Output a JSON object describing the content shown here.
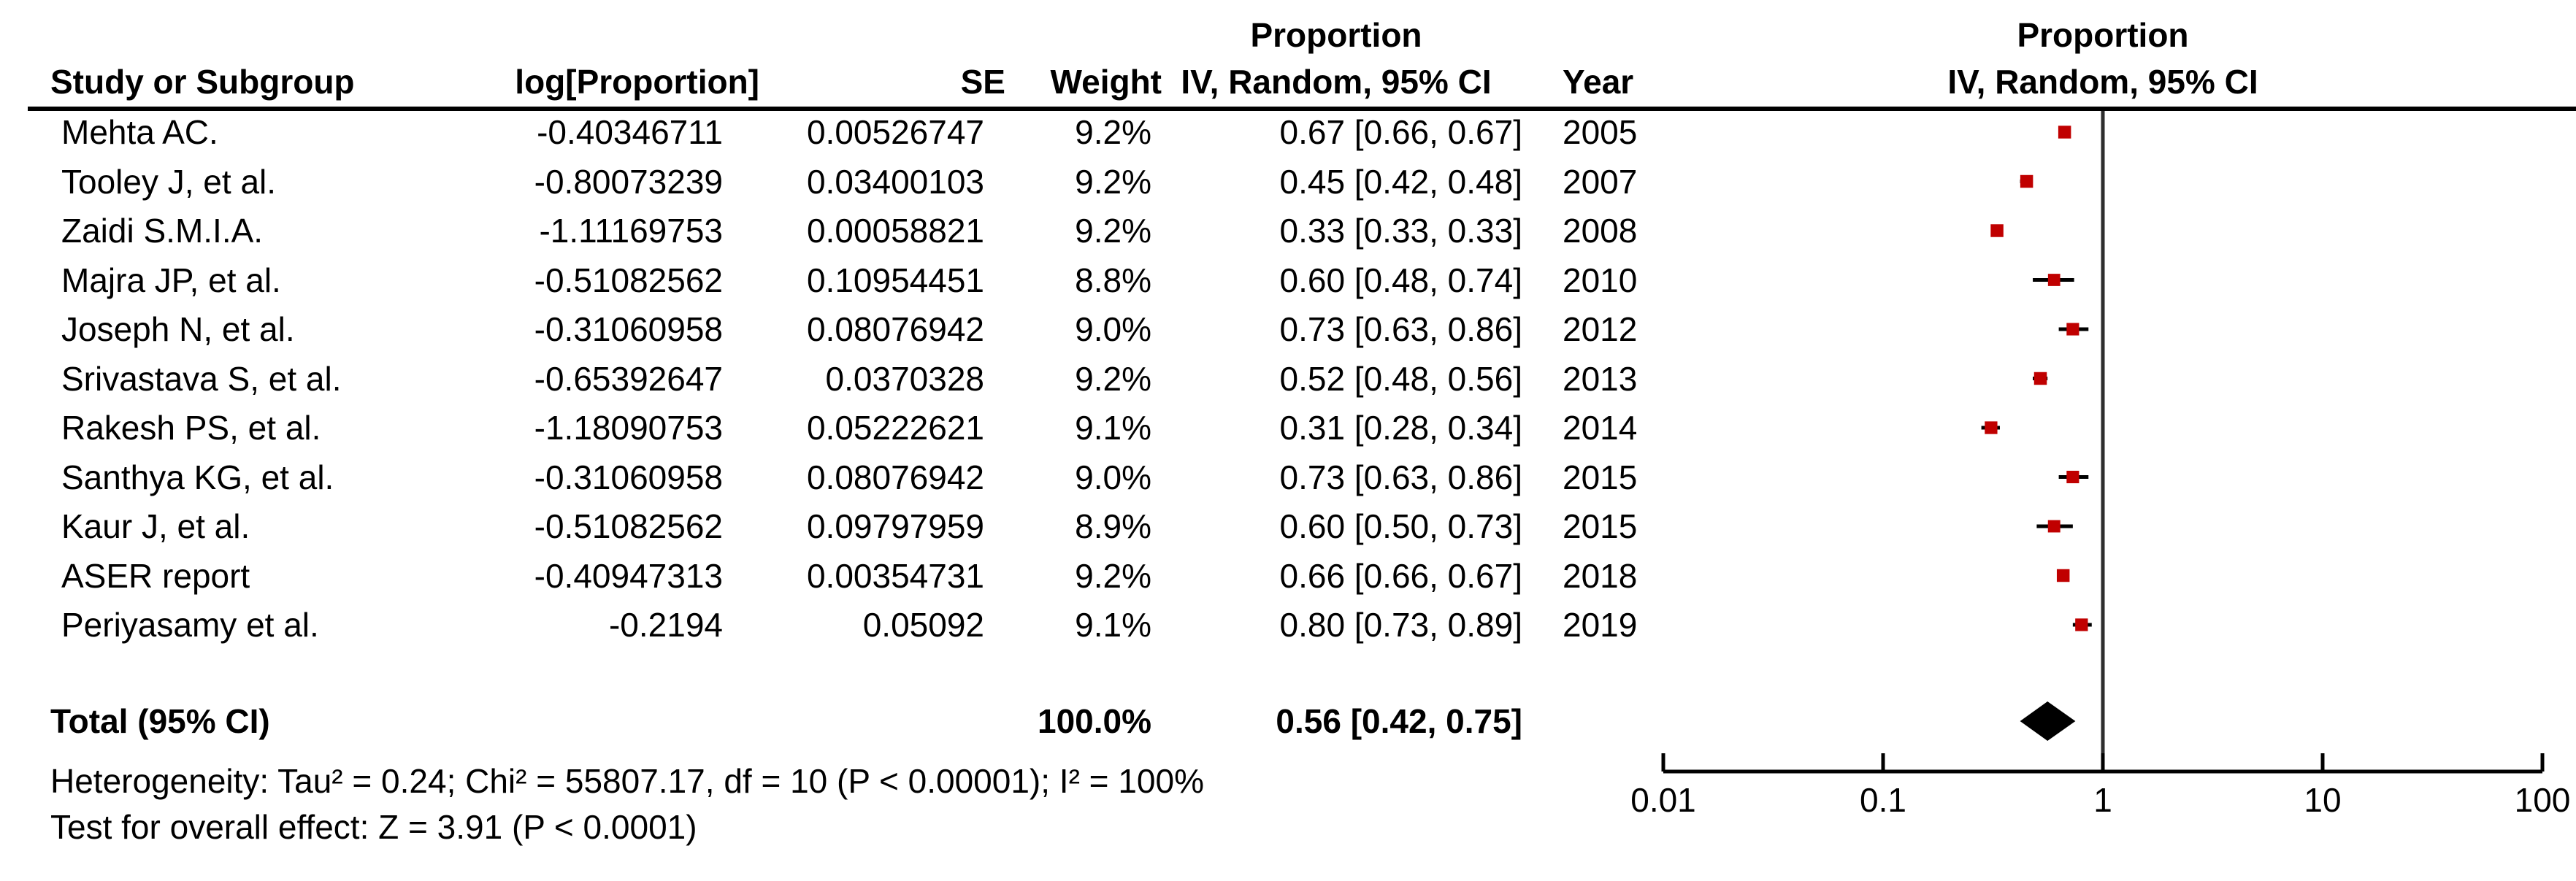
{
  "table_headers": {
    "study": "Study or Subgroup",
    "log_effect": "log[Proportion]",
    "se": "SE",
    "weight": "Weight",
    "effect_ci": "IV, Random, 95% CI",
    "year": "Year"
  },
  "plot_headers": {
    "line1": "Proportion",
    "line2": "IV, Random, 95% CI"
  },
  "chart_data": {
    "type": "scatter",
    "variant": "forest-plot",
    "effect_measure": "Proportion",
    "model": "IV, Random, 95% CI",
    "x_scale": "log10",
    "x_ticks": [
      0.01,
      0.1,
      1,
      10,
      100
    ],
    "x_tick_labels": [
      "0.01",
      "0.1",
      "1",
      "10",
      "100"
    ],
    "no_effect_line_x": 1,
    "marker_color": "#c00000",
    "diamond_color": "#000000",
    "studies": [
      {
        "study": "Mehta AC.",
        "log_proportion": "-0.40346711",
        "se": "0.00526747",
        "weight": "9.2%",
        "weight_pct": 9.2,
        "ci_text": "0.67 [0.66, 0.67]",
        "est": 0.67,
        "lo": 0.66,
        "hi": 0.67,
        "year": "2005"
      },
      {
        "study": "Tooley J, et al.",
        "log_proportion": "-0.80073239",
        "se": "0.03400103",
        "weight": "9.2%",
        "weight_pct": 9.2,
        "ci_text": "0.45 [0.42, 0.48]",
        "est": 0.45,
        "lo": 0.42,
        "hi": 0.48,
        "year": "2007"
      },
      {
        "study": "Zaidi S.M.I.A.",
        "log_proportion": "-1.11169753",
        "se": "0.00058821",
        "weight": "9.2%",
        "weight_pct": 9.2,
        "ci_text": "0.33 [0.33, 0.33]",
        "est": 0.33,
        "lo": 0.33,
        "hi": 0.33,
        "year": "2008"
      },
      {
        "study": "Majra JP, et al.",
        "log_proportion": "-0.51082562",
        "se": "0.10954451",
        "weight": "8.8%",
        "weight_pct": 8.8,
        "ci_text": "0.60 [0.48, 0.74]",
        "est": 0.6,
        "lo": 0.48,
        "hi": 0.74,
        "year": "2010"
      },
      {
        "study": "Joseph N, et al.",
        "log_proportion": "-0.31060958",
        "se": "0.08076942",
        "weight": "9.0%",
        "weight_pct": 9.0,
        "ci_text": "0.73 [0.63, 0.86]",
        "est": 0.73,
        "lo": 0.63,
        "hi": 0.86,
        "year": "2012"
      },
      {
        "study": "Srivastava S, et al.",
        "log_proportion": "-0.65392647",
        "se": "0.0370328",
        "weight": "9.2%",
        "weight_pct": 9.2,
        "ci_text": "0.52 [0.48, 0.56]",
        "est": 0.52,
        "lo": 0.48,
        "hi": 0.56,
        "year": "2013"
      },
      {
        "study": "Rakesh PS, et al.",
        "log_proportion": "-1.18090753",
        "se": "0.05222621",
        "weight": "9.1%",
        "weight_pct": 9.1,
        "ci_text": "0.31 [0.28, 0.34]",
        "est": 0.31,
        "lo": 0.28,
        "hi": 0.34,
        "year": "2014"
      },
      {
        "study": "Santhya KG, et al.",
        "log_proportion": "-0.31060958",
        "se": "0.08076942",
        "weight": "9.0%",
        "weight_pct": 9.0,
        "ci_text": "0.73 [0.63, 0.86]",
        "est": 0.73,
        "lo": 0.63,
        "hi": 0.86,
        "year": "2015"
      },
      {
        "study": "Kaur J, et al.",
        "log_proportion": "-0.51082562",
        "se": "0.09797959",
        "weight": "8.9%",
        "weight_pct": 8.9,
        "ci_text": "0.60 [0.50, 0.73]",
        "est": 0.6,
        "lo": 0.5,
        "hi": 0.73,
        "year": "2015"
      },
      {
        "study": "ASER report",
        "log_proportion": "-0.40947313",
        "se": "0.00354731",
        "weight": "9.2%",
        "weight_pct": 9.2,
        "ci_text": "0.66 [0.66, 0.67]",
        "est": 0.66,
        "lo": 0.66,
        "hi": 0.67,
        "year": "2018"
      },
      {
        "study": "Periyasamy et al.",
        "log_proportion": "-0.2194",
        "se": "0.05092",
        "weight": "9.1%",
        "weight_pct": 9.1,
        "ci_text": "0.80 [0.73, 0.89]",
        "est": 0.8,
        "lo": 0.73,
        "hi": 0.89,
        "year": "2019"
      }
    ],
    "total": {
      "label": "Total (95% CI)",
      "weight": "100.0%",
      "weight_pct": 100.0,
      "ci_text": "0.56 [0.42, 0.75]",
      "est": 0.56,
      "lo": 0.42,
      "hi": 0.75
    },
    "heterogeneity": "Heterogeneity: Tau² = 0.24; Chi² = 55807.17, df = 10 (P < 0.00001); I² = 100%",
    "overall_effect": "Test for overall effect: Z = 3.91 (P < 0.0001)"
  }
}
